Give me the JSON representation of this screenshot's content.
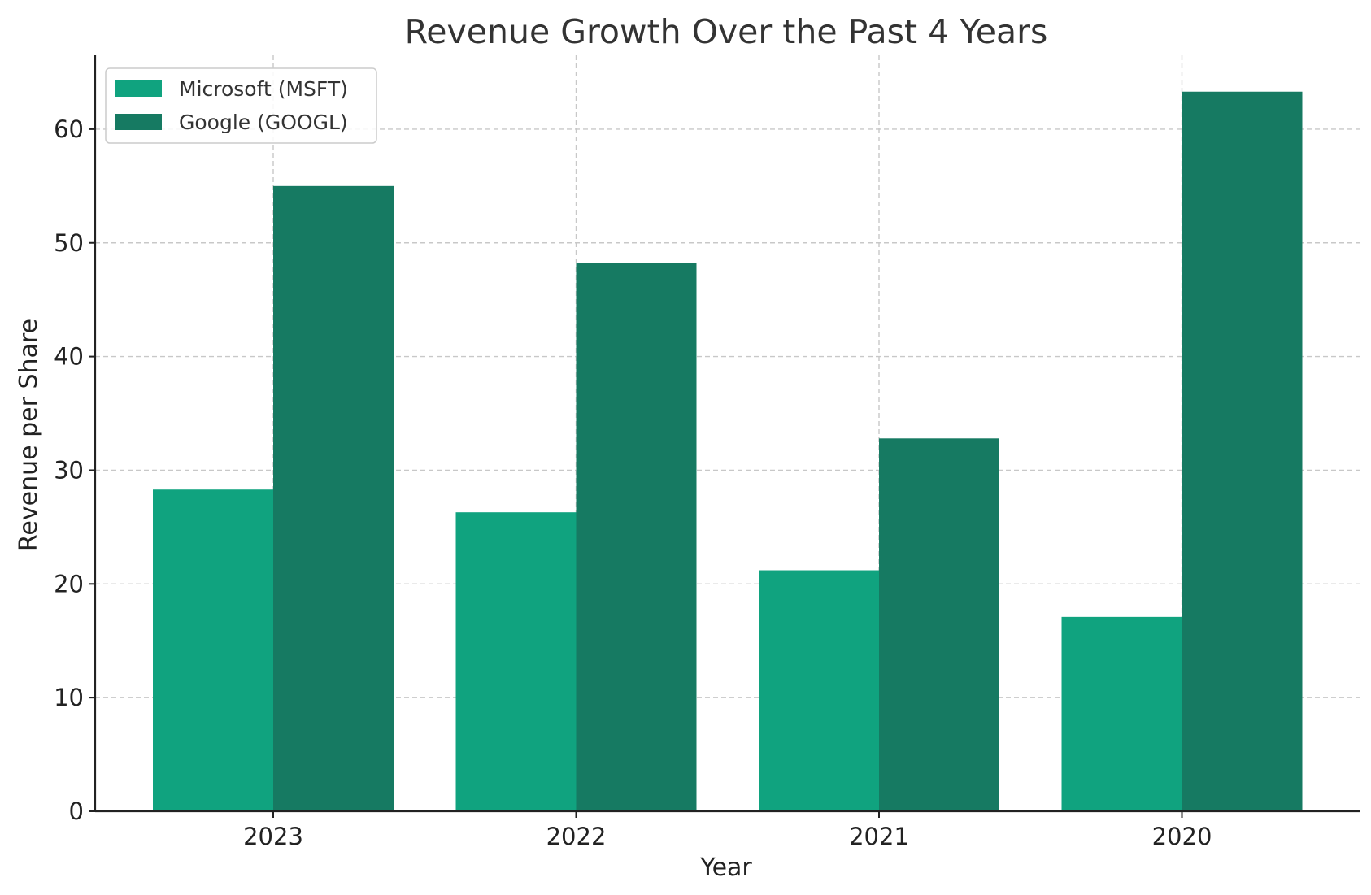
{
  "chart_data": {
    "type": "bar",
    "title": "Revenue Growth Over the Past 4 Years",
    "xlabel": "Year",
    "ylabel": "Revenue per Share",
    "categories": [
      "2023",
      "2022",
      "2021",
      "2020"
    ],
    "series": [
      {
        "name": "Microsoft (MSFT)",
        "color": "#10a37f",
        "values": [
          28.3,
          26.3,
          21.2,
          17.1
        ]
      },
      {
        "name": "Google (GOOGL)",
        "color": "#167a62",
        "values": [
          55.0,
          48.2,
          32.8,
          63.3
        ]
      }
    ],
    "ylim": [
      0,
      66.5
    ],
    "yticks": [
      0,
      10,
      20,
      30,
      40,
      50,
      60
    ],
    "grid": true,
    "legend_position": "top-left"
  }
}
